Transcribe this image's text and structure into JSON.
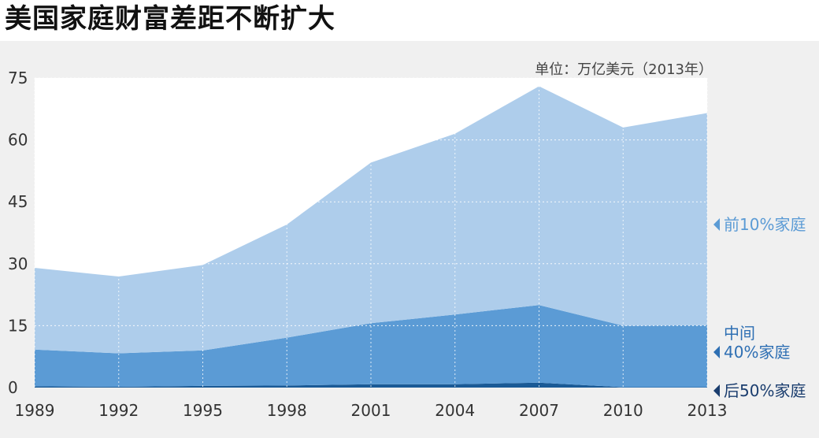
{
  "title": "美国家庭财富差距不断扩大",
  "chart_data": {
    "type": "area",
    "stacked": true,
    "title": "美国家庭财富差距不断扩大",
    "unit": "单位：万亿美元（2013年）",
    "x": [
      "1989",
      "1992",
      "1995",
      "1998",
      "2001",
      "2004",
      "2007",
      "2010",
      "2013"
    ],
    "ylim": [
      0,
      75
    ],
    "yticks": [
      0,
      15,
      30,
      45,
      60,
      75
    ],
    "series": [
      {
        "name": "后50%家庭",
        "values": [
          0.3,
          0.2,
          0.4,
          0.5,
          0.8,
          0.8,
          1.2,
          0.1,
          0.1
        ],
        "color": "#1a5a96"
      },
      {
        "name": "中间40%家庭",
        "values": [
          8.9,
          8.1,
          8.6,
          11.6,
          14.8,
          16.9,
          18.8,
          14.9,
          15.0
        ],
        "color": "#5b9bd5"
      },
      {
        "name": "前10%家庭",
        "values": [
          19.8,
          18.6,
          20.7,
          27.4,
          38.9,
          43.8,
          53.0,
          48.0,
          51.4
        ],
        "color": "#aecdeb"
      }
    ],
    "legend": [
      {
        "line1": "前10%家庭",
        "line2": "",
        "color": "#5b9bd5"
      },
      {
        "line1": "中间",
        "line2": "40%家庭",
        "color": "#2e6fb3"
      },
      {
        "line1": "后50%家庭",
        "line2": "",
        "color": "#1a3d6e"
      }
    ],
    "colors": {
      "top": "#aecdeb",
      "middle": "#5b9bd5",
      "bottom": "#1a5a96",
      "plot_bg": "#ffffff",
      "panel_bg": "#f0f0f0"
    }
  }
}
